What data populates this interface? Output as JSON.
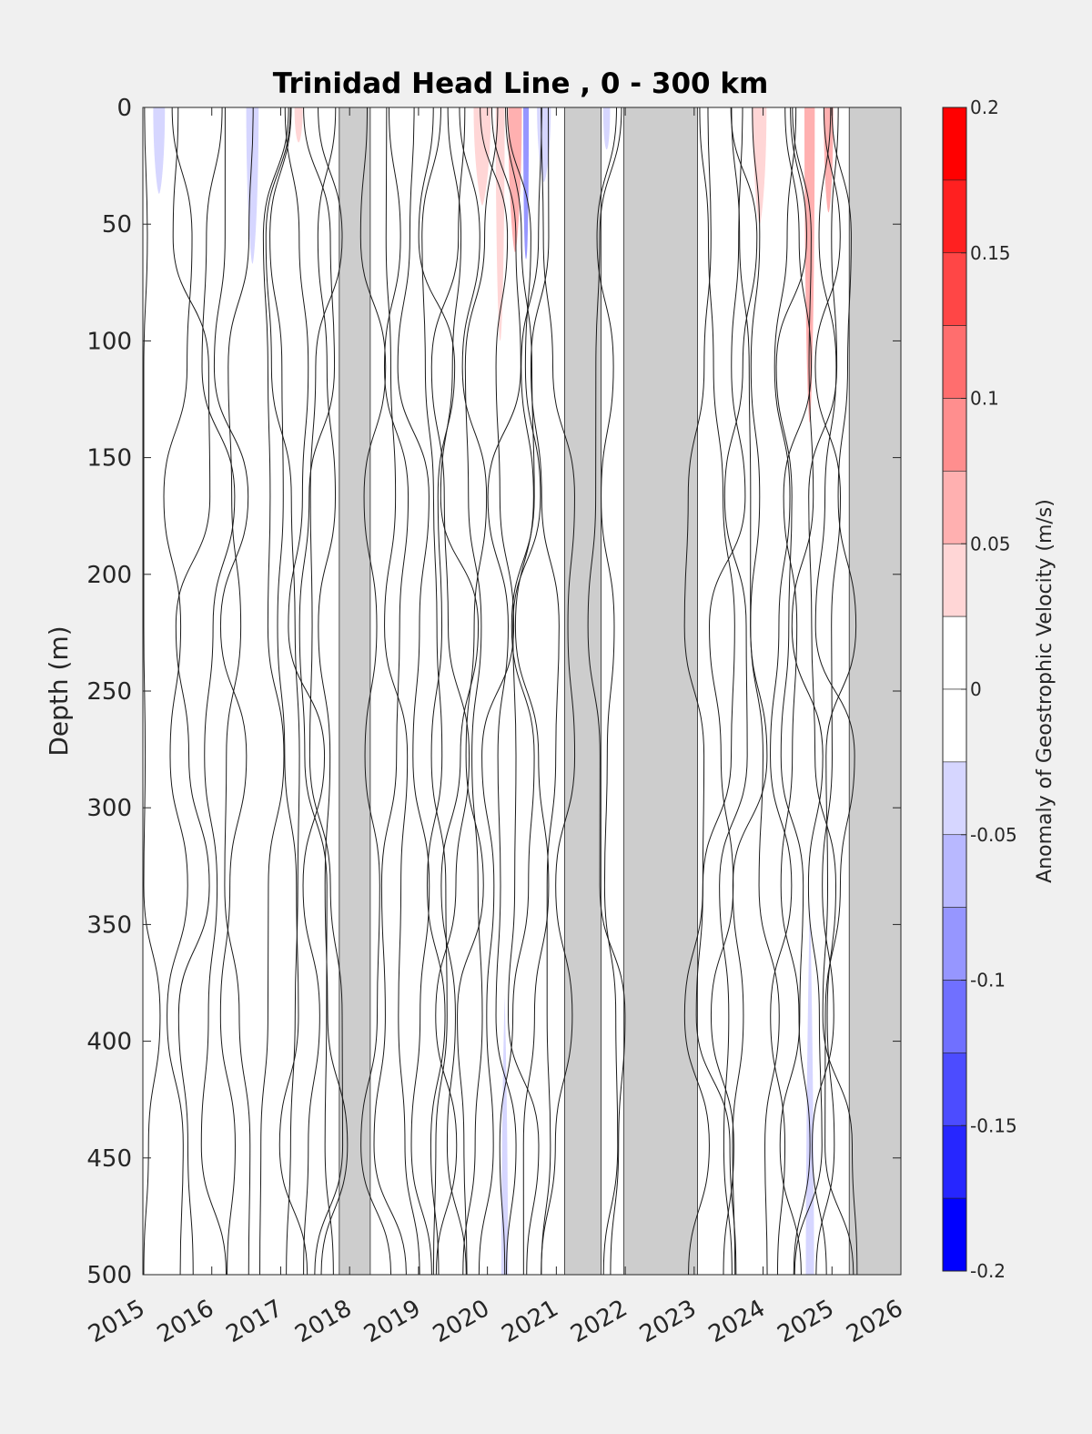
{
  "chart_data": {
    "type": "heatmap",
    "title": "Trinidad Head Line , 0 - 300 km",
    "ylabel": "Depth (m)",
    "xlabel": "",
    "xlim": [
      2015,
      2026
    ],
    "ylim": [
      0,
      500
    ],
    "y_reversed": true,
    "x_ticks": [
      "2015",
      "2016",
      "2017",
      "2018",
      "2019",
      "2020",
      "2021",
      "2022",
      "2023",
      "2024",
      "2025",
      "2026"
    ],
    "y_ticks": [
      "0",
      "50",
      "100",
      "150",
      "200",
      "250",
      "300",
      "350",
      "400",
      "450",
      "500"
    ],
    "grid": false,
    "colorbar": {
      "label": "Anomaly of Geostrophic Velocity (m/s)",
      "range": [
        -0.2,
        0.2
      ],
      "ticks": [
        "0.2",
        "0.15",
        "0.1",
        "0.05",
        "0",
        "-0.05",
        "-0.1",
        "-0.15",
        "-0.2"
      ],
      "levels": [
        {
          "from": 0.175,
          "to": 0.2,
          "color": "#ff0000"
        },
        {
          "from": 0.15,
          "to": 0.175,
          "color": "#ff2020"
        },
        {
          "from": 0.125,
          "to": 0.15,
          "color": "#ff4646"
        },
        {
          "from": 0.1,
          "to": 0.125,
          "color": "#ff6e6e"
        },
        {
          "from": 0.075,
          "to": 0.1,
          "color": "#ff8e8e"
        },
        {
          "from": 0.05,
          "to": 0.075,
          "color": "#ffb0b0"
        },
        {
          "from": 0.025,
          "to": 0.05,
          "color": "#ffd6d6"
        },
        {
          "from": 0.0,
          "to": 0.025,
          "color": "#ffffff"
        },
        {
          "from": -0.025,
          "to": 0.0,
          "color": "#ffffff"
        },
        {
          "from": -0.05,
          "to": -0.025,
          "color": "#d6d6ff"
        },
        {
          "from": -0.075,
          "to": -0.05,
          "color": "#b8b8ff"
        },
        {
          "from": -0.1,
          "to": -0.075,
          "color": "#9696ff"
        },
        {
          "from": -0.125,
          "to": -0.1,
          "color": "#7070ff"
        },
        {
          "from": -0.15,
          "to": -0.125,
          "color": "#4c4cff"
        },
        {
          "from": -0.175,
          "to": -0.15,
          "color": "#2626ff"
        },
        {
          "from": -0.2,
          "to": -0.175,
          "color": "#0000ff"
        }
      ]
    },
    "missing_data_color": "#cdcdcd",
    "missing_data_periods": [
      [
        2017.85,
        2018.3
      ],
      [
        2021.12,
        2021.65
      ],
      [
        2021.98,
        2023.05
      ],
      [
        2025.25,
        2026.0
      ]
    ],
    "anomaly_patches": [
      {
        "x0": 2015.15,
        "x1": 2015.32,
        "depth_max": 37,
        "value": -0.04
      },
      {
        "x0": 2016.5,
        "x1": 2016.68,
        "depth_max": 67,
        "value": -0.04
      },
      {
        "x0": 2017.2,
        "x1": 2017.32,
        "depth_max": 15,
        "value": 0.04
      },
      {
        "x0": 2019.8,
        "x1": 2020.05,
        "depth_max": 42,
        "value": 0.04
      },
      {
        "x0": 2020.12,
        "x1": 2020.25,
        "depth_max": 100,
        "value": 0.04
      },
      {
        "x0": 2020.3,
        "x1": 2020.5,
        "depth_max": 62,
        "value": 0.06
      },
      {
        "x0": 2020.52,
        "x1": 2020.6,
        "depth_max": 65,
        "value": -0.09
      },
      {
        "x0": 2020.72,
        "x1": 2020.92,
        "depth_max": 32,
        "value": -0.04
      },
      {
        "x0": 2021.68,
        "x1": 2021.78,
        "depth_max": 18,
        "value": -0.04
      },
      {
        "x0": 2023.85,
        "x1": 2024.05,
        "depth_max": 50,
        "value": 0.04
      },
      {
        "x0": 2024.6,
        "x1": 2024.75,
        "depth_max": 135,
        "value": 0.07
      },
      {
        "x0": 2024.88,
        "x1": 2025.02,
        "depth_max": 45,
        "value": 0.06
      },
      {
        "x0": 2024.62,
        "x1": 2024.74,
        "depth_min": 340,
        "depth_max": 500,
        "value": -0.04
      },
      {
        "x0": 2020.2,
        "x1": 2020.3,
        "depth_min": 380,
        "depth_max": 500,
        "value": -0.03
      }
    ],
    "contour_lines_at": [
      2015.03,
      2015.55,
      2015.7,
      2016.05,
      2016.28,
      2016.45,
      2016.85,
      2017.0,
      2017.12,
      2017.35,
      2017.55,
      2017.7,
      2017.8,
      2018.45,
      2018.6,
      2018.78,
      2018.92,
      2019.1,
      2019.25,
      2019.45,
      2019.6,
      2019.75,
      2019.92,
      2020.15,
      2020.28,
      2020.42,
      2020.5,
      2020.62,
      2020.85,
      2021.02,
      2021.72,
      2021.85,
      2023.15,
      2023.32,
      2023.5,
      2023.65,
      2023.8,
      2024.05,
      2024.25,
      2024.42,
      2024.55,
      2024.7,
      2024.82,
      2024.95,
      2025.05,
      2025.15
    ]
  }
}
